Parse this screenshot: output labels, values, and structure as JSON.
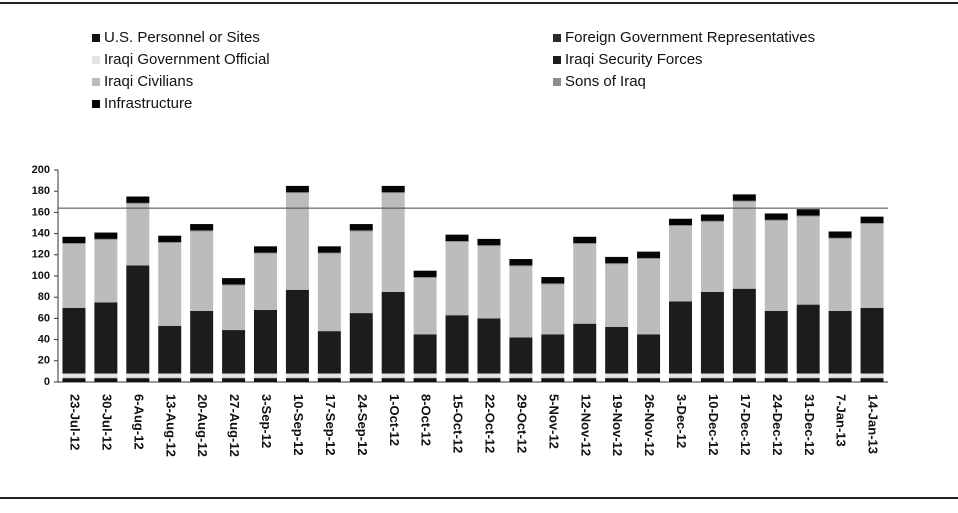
{
  "chart_data": {
    "type": "bar",
    "stacked": true,
    "categories": [
      "23-Jul-12",
      "30-Jul-12",
      "6-Aug-12",
      "13-Aug-12",
      "20-Aug-12",
      "27-Aug-12",
      "3-Sep-12",
      "10-Sep-12",
      "17-Sep-12",
      "24-Sep-12",
      "1-Oct-12",
      "8-Oct-12",
      "15-Oct-12",
      "22-Oct-12",
      "29-Oct-12",
      "5-Nov-12",
      "12-Nov-12",
      "19-Nov-12",
      "26-Nov-12",
      "3-Dec-12",
      "10-Dec-12",
      "17-Dec-12",
      "24-Dec-12",
      "31-Dec-12",
      "7-Jan-13",
      "14-Jan-13"
    ],
    "series": [
      {
        "name": "U.S. Personnel or Sites",
        "color": "#111111",
        "values": [
          3,
          3,
          3,
          3,
          3,
          3,
          3,
          3,
          3,
          3,
          3,
          3,
          3,
          3,
          3,
          3,
          3,
          3,
          3,
          3,
          3,
          3,
          3,
          3,
          3,
          3
        ]
      },
      {
        "name": "Foreign Government Representatives",
        "color": "#2a2a2a",
        "values": [
          1,
          1,
          1,
          1,
          1,
          1,
          1,
          1,
          1,
          1,
          1,
          1,
          1,
          1,
          1,
          1,
          1,
          1,
          1,
          1,
          1,
          1,
          1,
          1,
          1,
          1
        ]
      },
      {
        "name": "Iraqi Government Official",
        "color": "#e4e4e4",
        "values": [
          4,
          4,
          4,
          4,
          4,
          4,
          4,
          4,
          4,
          4,
          4,
          4,
          4,
          4,
          4,
          4,
          4,
          4,
          4,
          4,
          4,
          4,
          4,
          4,
          4,
          4
        ]
      },
      {
        "name": "Iraqi Security Forces",
        "color": "#1c1c1c",
        "values": [
          62,
          67,
          102,
          45,
          59,
          41,
          60,
          79,
          40,
          57,
          77,
          37,
          55,
          52,
          34,
          37,
          47,
          44,
          37,
          68,
          77,
          80,
          59,
          65,
          59,
          62
        ]
      },
      {
        "name": "Iraqi Civilians",
        "color": "#bcbcbc",
        "values": [
          60,
          59,
          58,
          78,
          75,
          42,
          53,
          91,
          73,
          77,
          93,
          53,
          69,
          68,
          67,
          47,
          75,
          59,
          71,
          71,
          66,
          82,
          85,
          83,
          68,
          79
        ]
      },
      {
        "name": "Sons of Iraq",
        "color": "#8c8c8c",
        "values": [
          1,
          1,
          1,
          1,
          1,
          1,
          1,
          1,
          1,
          1,
          1,
          1,
          1,
          1,
          1,
          1,
          1,
          1,
          1,
          1,
          1,
          1,
          1,
          1,
          1,
          1
        ]
      },
      {
        "name": "Infrastructure",
        "color": "#050505",
        "values": [
          6,
          6,
          6,
          6,
          6,
          6,
          6,
          6,
          6,
          6,
          6,
          6,
          6,
          6,
          6,
          6,
          6,
          6,
          6,
          6,
          6,
          6,
          6,
          6,
          6,
          6
        ]
      }
    ],
    "ylim": [
      0,
      200
    ],
    "yticks": [
      0,
      20,
      40,
      60,
      80,
      100,
      120,
      140,
      160,
      180,
      200
    ],
    "reference_line": 164,
    "grid": false
  }
}
